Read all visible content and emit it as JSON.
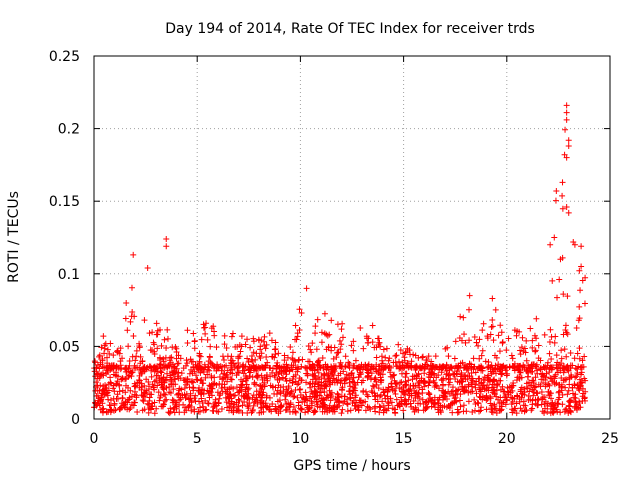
{
  "chart_data": {
    "type": "scatter",
    "title": "Day 194 of 2014, Rate Of TEC Index for receiver trds",
    "xlabel": "GPS time / hours",
    "ylabel": "ROTI / TECUs",
    "xlim": [
      0,
      25
    ],
    "ylim": [
      0,
      0.25
    ],
    "x_ticks": [
      0,
      5,
      10,
      15,
      20,
      25
    ],
    "y_ticks": [
      0,
      0.05,
      0.1,
      0.15,
      0.2,
      0.25
    ],
    "x_tick_labels": [
      "0",
      "5",
      "10",
      "15",
      "20",
      "25"
    ],
    "y_tick_labels": [
      "0",
      "0.05",
      "0.1",
      "0.15",
      "0.2",
      "0.25"
    ],
    "grid": true,
    "marker": "+",
    "marker_color": "#ff0000",
    "series": [
      {
        "name": "ROTI",
        "x_range": [
          0,
          23.8
        ],
        "baseline_band": [
          0.01,
          0.035
        ],
        "envelope": [
          [
            0.0,
            0.045
          ],
          [
            0.3,
            0.06
          ],
          [
            0.6,
            0.055
          ],
          [
            1.0,
            0.05
          ],
          [
            1.3,
            0.065
          ],
          [
            1.6,
            0.085
          ],
          [
            1.8,
            0.11
          ],
          [
            2.0,
            0.075
          ],
          [
            2.4,
            0.1
          ],
          [
            2.8,
            0.065
          ],
          [
            3.2,
            0.07
          ],
          [
            3.5,
            0.12
          ],
          [
            3.8,
            0.075
          ],
          [
            4.2,
            0.055
          ],
          [
            5.0,
            0.07
          ],
          [
            6.0,
            0.065
          ],
          [
            7.0,
            0.06
          ],
          [
            8.0,
            0.055
          ],
          [
            9.0,
            0.065
          ],
          [
            9.8,
            0.07
          ],
          [
            10.2,
            0.085
          ],
          [
            10.5,
            0.06
          ],
          [
            11.0,
            0.075
          ],
          [
            12.0,
            0.075
          ],
          [
            12.5,
            0.06
          ],
          [
            13.0,
            0.07
          ],
          [
            13.5,
            0.065
          ],
          [
            14.0,
            0.055
          ],
          [
            15.0,
            0.05
          ],
          [
            16.0,
            0.045
          ],
          [
            17.0,
            0.05
          ],
          [
            17.5,
            0.06
          ],
          [
            18.0,
            0.085
          ],
          [
            18.5,
            0.065
          ],
          [
            19.0,
            0.07
          ],
          [
            19.5,
            0.08
          ],
          [
            20.0,
            0.06
          ],
          [
            21.0,
            0.065
          ],
          [
            21.8,
            0.075
          ],
          [
            22.1,
            0.13
          ],
          [
            22.4,
            0.16
          ],
          [
            22.7,
            0.18
          ],
          [
            22.9,
            0.215
          ],
          [
            23.1,
            0.14
          ],
          [
            23.4,
            0.11
          ],
          [
            23.8,
            0.1
          ]
        ],
        "highlight_points": [
          [
            1.9,
            0.113
          ],
          [
            2.6,
            0.104
          ],
          [
            3.5,
            0.124
          ],
          [
            3.5,
            0.119
          ],
          [
            10.3,
            0.09
          ],
          [
            18.2,
            0.085
          ],
          [
            19.3,
            0.083
          ],
          [
            22.3,
            0.125
          ],
          [
            22.4,
            0.157
          ],
          [
            22.7,
            0.163
          ],
          [
            22.8,
            0.182
          ],
          [
            22.9,
            0.216
          ],
          [
            22.9,
            0.211
          ],
          [
            22.9,
            0.206
          ],
          [
            23.0,
            0.192
          ],
          [
            23.0,
            0.188
          ],
          [
            22.9,
            0.18
          ],
          [
            22.9,
            0.146
          ],
          [
            23.0,
            0.142
          ],
          [
            23.6,
            0.119
          ],
          [
            23.6,
            0.105
          ],
          [
            23.3,
            0.12
          ],
          [
            22.1,
            0.12
          ],
          [
            22.6,
            0.11
          ]
        ]
      }
    ]
  }
}
